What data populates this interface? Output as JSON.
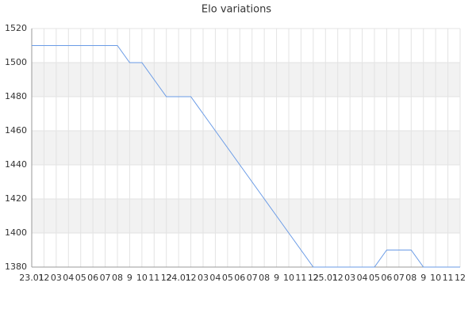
{
  "chart_data": {
    "type": "line",
    "title": "Elo variations",
    "categories": [
      "23.01",
      "12",
      "03",
      "04",
      "05",
      "06",
      "07",
      "08",
      "9",
      "10",
      "11",
      "12",
      "24.01",
      "12",
      "03",
      "04",
      "05",
      "06",
      "07",
      "08",
      "9",
      "10",
      "11",
      "12",
      "25.01",
      "12",
      "03",
      "04",
      "05",
      "06",
      "07",
      "08",
      "9",
      "10",
      "11",
      "12"
    ],
    "series": [
      {
        "name": "Elo",
        "color": "#6a9be6",
        "values": [
          1510,
          1510,
          1510,
          1510,
          1510,
          1510,
          1510,
          1510,
          1500,
          1500,
          1490,
          1480,
          1480,
          1480,
          1470,
          1460,
          1450,
          1440,
          1430,
          1420,
          1410,
          1400,
          1390,
          1380,
          1380,
          1380,
          1380,
          1380,
          1380,
          1390,
          1390,
          1390,
          1380,
          1380,
          1380,
          1380
        ]
      }
    ],
    "ylim": [
      1380,
      1520
    ],
    "yticks": [
      1380,
      1400,
      1420,
      1440,
      1460,
      1480,
      1500,
      1520
    ],
    "grid": true,
    "alternate_bands": true
  }
}
